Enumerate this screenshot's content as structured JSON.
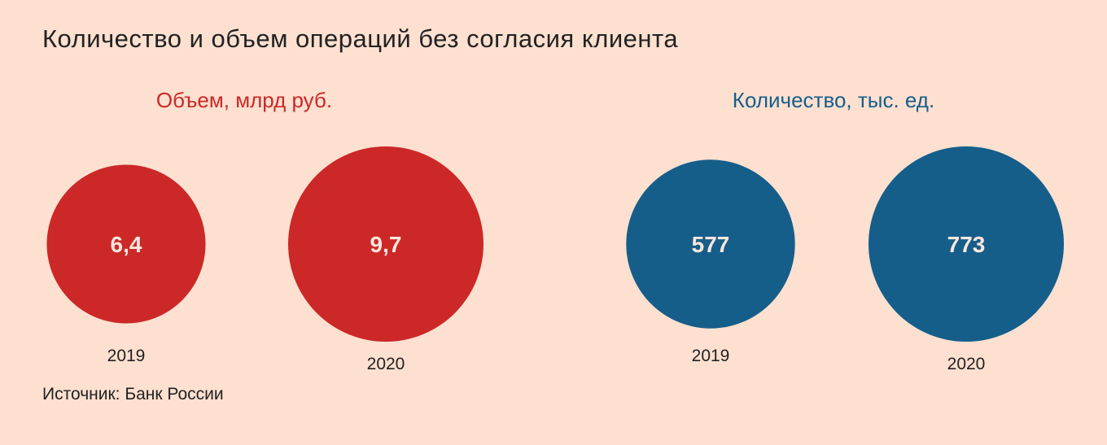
{
  "title": "Количество и объем операций без согласия клиента",
  "source": "Источник: Банк России",
  "colors": {
    "background": "#fde0d0",
    "volume": "#cc2828",
    "count": "#165e8a"
  },
  "chart_data": [
    {
      "type": "bubble",
      "title": "Объем, млрд руб.",
      "categories": [
        "2019",
        "2020"
      ],
      "values": [
        6.4,
        9.7
      ],
      "value_labels": [
        "6,4",
        "9,7"
      ],
      "color": "#cc2828"
    },
    {
      "type": "bubble",
      "title": "Количество, тыс. ед.",
      "categories": [
        "2019",
        "2020"
      ],
      "values": [
        577,
        773
      ],
      "value_labels": [
        "577",
        "773"
      ],
      "color": "#165e8a"
    }
  ]
}
